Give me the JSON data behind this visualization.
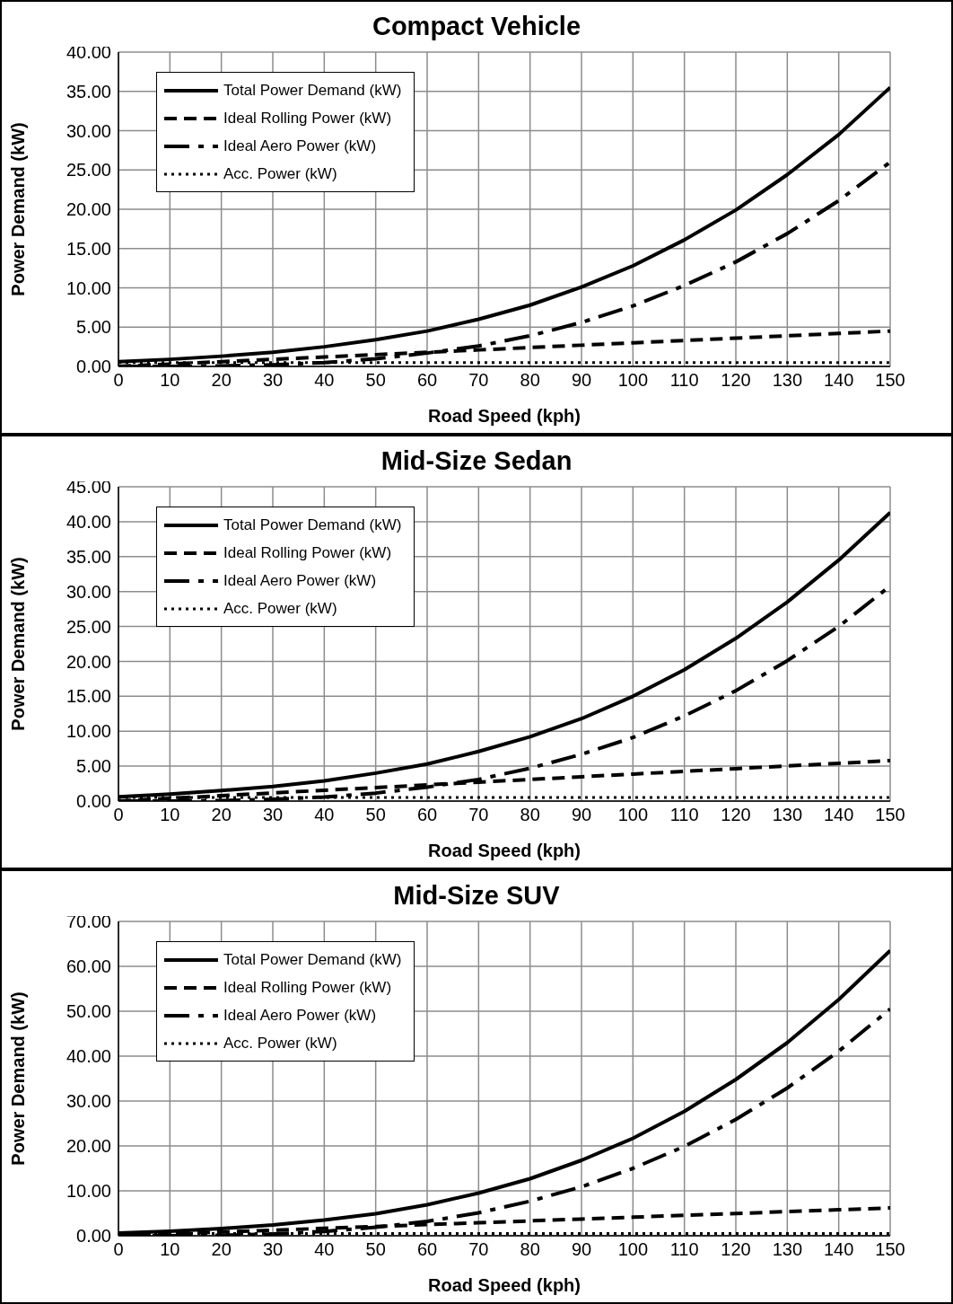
{
  "chart_data": [
    {
      "type": "line",
      "title": "Compact Vehicle",
      "xlabel": "Road Speed (kph)",
      "ylabel": "Power Demand (kW)",
      "x": [
        0,
        10,
        20,
        30,
        40,
        50,
        60,
        70,
        80,
        90,
        100,
        110,
        120,
        130,
        140,
        150
      ],
      "xlim": [
        0,
        150
      ],
      "xticks": [
        0,
        10,
        20,
        30,
        40,
        50,
        60,
        70,
        80,
        90,
        100,
        110,
        120,
        130,
        140,
        150
      ],
      "ylim": [
        0,
        40
      ],
      "yticks": [
        {
          "value": 0,
          "label": "0.00"
        },
        {
          "value": 5,
          "label": "5.00"
        },
        {
          "value": 10,
          "label": "10.00"
        },
        {
          "value": 15,
          "label": "15.00"
        },
        {
          "value": 20,
          "label": "20.00"
        },
        {
          "value": 25,
          "label": "25.00"
        },
        {
          "value": 30,
          "label": "30.00"
        },
        {
          "value": 35,
          "label": "35.00"
        },
        {
          "value": 40,
          "label": "40.00"
        }
      ],
      "grid": true,
      "legend": "top left",
      "marker": "none",
      "series": [
        {
          "name": "Total  Power Demand (kW)",
          "color": "#000000",
          "line_style": "solid",
          "values": [
            0.6,
            0.9,
            1.3,
            1.8,
            2.5,
            3.4,
            4.5,
            6.0,
            7.8,
            10.1,
            12.8,
            16.1,
            19.9,
            24.4,
            29.5,
            35.5
          ]
        },
        {
          "name": "Ideal Rolling Power (kW)",
          "color": "#000000",
          "line_style": "dashed",
          "values": [
            0,
            0.3,
            0.6,
            0.9,
            1.2,
            1.5,
            1.8,
            2.1,
            2.4,
            2.7,
            3.0,
            3.3,
            3.6,
            3.9,
            4.2,
            4.5
          ]
        },
        {
          "name": "Ideal Aero Power (kW)",
          "color": "#000000",
          "line_style": "dashdot",
          "values": [
            0,
            0.01,
            0.06,
            0.21,
            0.49,
            0.96,
            1.7,
            2.6,
            3.9,
            5.6,
            7.7,
            10.3,
            13.3,
            16.9,
            21.1,
            26.0
          ]
        },
        {
          "name": "Acc. Power (kW)",
          "color": "#000000",
          "line_style": "dotted",
          "values": [
            0.5,
            0.5,
            0.5,
            0.5,
            0.5,
            0.5,
            0.5,
            0.5,
            0.5,
            0.5,
            0.5,
            0.5,
            0.5,
            0.5,
            0.5,
            0.5
          ]
        }
      ]
    },
    {
      "type": "line",
      "title": "Mid-Size Sedan",
      "xlabel": "Road Speed (kph)",
      "ylabel": "Power Demand (kW)",
      "x": [
        0,
        10,
        20,
        30,
        40,
        50,
        60,
        70,
        80,
        90,
        100,
        110,
        120,
        130,
        140,
        150
      ],
      "xlim": [
        0,
        150
      ],
      "xticks": [
        0,
        10,
        20,
        30,
        40,
        50,
        60,
        70,
        80,
        90,
        100,
        110,
        120,
        130,
        140,
        150
      ],
      "ylim": [
        0,
        45
      ],
      "yticks": [
        {
          "value": 0,
          "label": "0.00"
        },
        {
          "value": 5,
          "label": "5.00"
        },
        {
          "value": 10,
          "label": "10.00"
        },
        {
          "value": 15,
          "label": "15.00"
        },
        {
          "value": 20,
          "label": "20.00"
        },
        {
          "value": 25,
          "label": "25.00"
        },
        {
          "value": 30,
          "label": "30.00"
        },
        {
          "value": 35,
          "label": "35.00"
        },
        {
          "value": 40,
          "label": "40.00"
        },
        {
          "value": 45,
          "label": "45.00"
        }
      ],
      "grid": true,
      "legend": "top left",
      "marker": "none",
      "series": [
        {
          "name": "Total  Power Demand (kW)",
          "color": "#000000",
          "line_style": "solid",
          "values": [
            0.6,
            1.0,
            1.5,
            2.1,
            2.9,
            4.0,
            5.3,
            7.1,
            9.2,
            11.8,
            15.0,
            18.8,
            23.3,
            28.5,
            34.5,
            41.3
          ]
        },
        {
          "name": "Ideal Rolling Power (kW)",
          "color": "#000000",
          "line_style": "dashed",
          "values": [
            0,
            0.39,
            0.77,
            1.16,
            1.55,
            1.93,
            2.32,
            2.71,
            3.09,
            3.48,
            3.87,
            4.25,
            4.64,
            5.03,
            5.41,
            5.8
          ]
        },
        {
          "name": "Ideal Aero Power (kW)",
          "color": "#000000",
          "line_style": "dashdot",
          "values": [
            0,
            0.01,
            0.07,
            0.25,
            0.58,
            1.14,
            2.0,
            3.1,
            4.7,
            6.7,
            9.1,
            12.2,
            15.8,
            20.1,
            25.0,
            30.8
          ]
        },
        {
          "name": "Acc. Power (kW)",
          "color": "#000000",
          "line_style": "dotted",
          "values": [
            0.5,
            0.5,
            0.5,
            0.5,
            0.5,
            0.5,
            0.5,
            0.5,
            0.5,
            0.5,
            0.5,
            0.5,
            0.5,
            0.5,
            0.5,
            0.5
          ]
        }
      ]
    },
    {
      "type": "line",
      "title": "Mid-Size SUV",
      "xlabel": "Road Speed (kph)",
      "ylabel": "Power Demand (kW)",
      "x": [
        0,
        10,
        20,
        30,
        40,
        50,
        60,
        70,
        80,
        90,
        100,
        110,
        120,
        130,
        140,
        150
      ],
      "xlim": [
        0,
        150
      ],
      "xticks": [
        0,
        10,
        20,
        30,
        40,
        50,
        60,
        70,
        80,
        90,
        100,
        110,
        120,
        130,
        140,
        150
      ],
      "ylim": [
        0,
        70
      ],
      "yticks": [
        {
          "value": 0,
          "label": "0.00"
        },
        {
          "value": 10,
          "label": "10.00"
        },
        {
          "value": 20,
          "label": "20.00"
        },
        {
          "value": 30,
          "label": "30.00"
        },
        {
          "value": 40,
          "label": "40.00"
        },
        {
          "value": 50,
          "label": "50.00"
        },
        {
          "value": 60,
          "label": "60.00"
        },
        {
          "value": 70,
          "label": "70.00"
        }
      ],
      "grid": true,
      "legend": "top left",
      "marker": "none",
      "series": [
        {
          "name": "Total  Power Demand (kW)",
          "color": "#000000",
          "line_style": "solid",
          "values": [
            0.6,
            1.0,
            1.6,
            2.4,
            3.5,
            4.9,
            6.9,
            9.5,
            12.7,
            16.8,
            21.7,
            27.7,
            34.8,
            43.0,
            52.6,
            63.5
          ]
        },
        {
          "name": "Ideal Rolling Power (kW)",
          "color": "#000000",
          "line_style": "dashed",
          "values": [
            0,
            0.41,
            0.83,
            1.24,
            1.65,
            2.07,
            2.48,
            2.89,
            3.31,
            3.72,
            4.13,
            4.55,
            4.96,
            5.37,
            5.79,
            6.2
          ]
        },
        {
          "name": "Ideal Aero Power (kW)",
          "color": "#000000",
          "line_style": "dashdot",
          "values": [
            0,
            0.02,
            0.12,
            0.4,
            0.96,
            1.9,
            3.2,
            5.1,
            7.7,
            10.9,
            15.0,
            19.9,
            25.9,
            32.9,
            41.1,
            50.5
          ]
        },
        {
          "name": "Acc. Power (kW)",
          "color": "#000000",
          "line_style": "dotted",
          "values": [
            0.5,
            0.5,
            0.5,
            0.5,
            0.5,
            0.5,
            0.5,
            0.5,
            0.5,
            0.5,
            0.5,
            0.5,
            0.5,
            0.5,
            0.5,
            0.5
          ]
        }
      ]
    }
  ]
}
